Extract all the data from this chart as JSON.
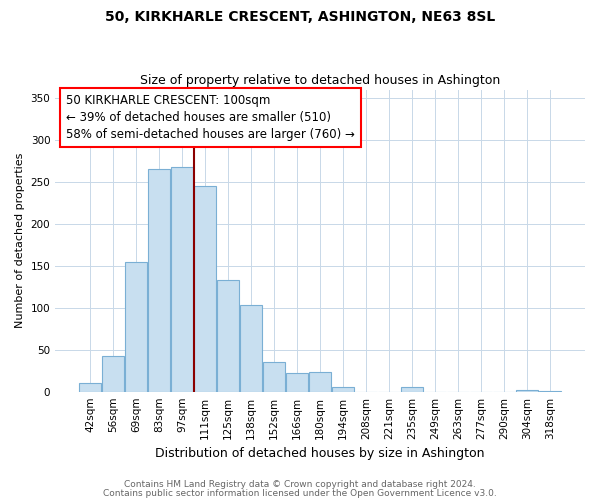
{
  "title": "50, KIRKHARLE CRESCENT, ASHINGTON, NE63 8SL",
  "subtitle": "Size of property relative to detached houses in Ashington",
  "xlabel": "Distribution of detached houses by size in Ashington",
  "ylabel": "Number of detached properties",
  "bar_labels": [
    "42sqm",
    "56sqm",
    "69sqm",
    "83sqm",
    "97sqm",
    "111sqm",
    "125sqm",
    "138sqm",
    "152sqm",
    "166sqm",
    "180sqm",
    "194sqm",
    "208sqm",
    "221sqm",
    "235sqm",
    "249sqm",
    "263sqm",
    "277sqm",
    "290sqm",
    "304sqm",
    "318sqm"
  ],
  "bar_values": [
    10,
    42,
    155,
    265,
    268,
    245,
    133,
    103,
    35,
    22,
    23,
    6,
    0,
    0,
    5,
    0,
    0,
    0,
    0,
    2,
    1
  ],
  "bar_color": "#c8dff0",
  "bar_edge_color": "#7aafd4",
  "vline_x": 4.5,
  "vline_color": "#8b0000",
  "annotation_title": "50 KIRKHARLE CRESCENT: 100sqm",
  "annotation_line1": "← 39% of detached houses are smaller (510)",
  "annotation_line2": "58% of semi-detached houses are larger (760) →",
  "annotation_box_color": "white",
  "annotation_box_edge_color": "red",
  "yticks": [
    0,
    50,
    100,
    150,
    200,
    250,
    300,
    350
  ],
  "ylim": [
    0,
    360
  ],
  "footer1": "Contains HM Land Registry data © Crown copyright and database right 2024.",
  "footer2": "Contains public sector information licensed under the Open Government Licence v3.0.",
  "title_fontsize": 10,
  "subtitle_fontsize": 9,
  "xlabel_fontsize": 9,
  "ylabel_fontsize": 8,
  "tick_fontsize": 7.5,
  "annotation_fontsize": 8.5,
  "footer_fontsize": 6.5
}
